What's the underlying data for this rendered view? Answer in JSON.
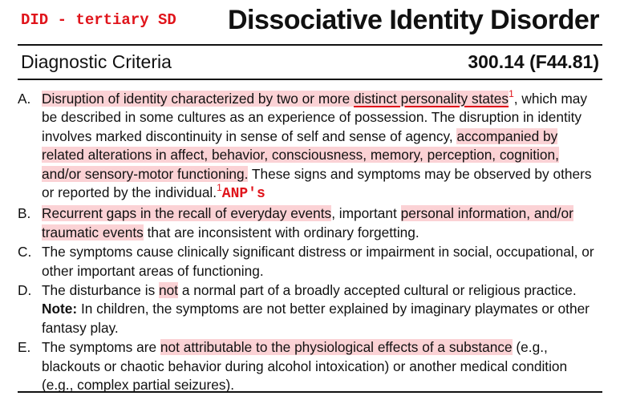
{
  "header": {
    "tag": "DID - tertiary SD",
    "title": "Dissociative Identity Disorder",
    "subtitle": "Diagnostic Criteria",
    "code": "300.14 (F44.81)"
  },
  "criteria": {
    "a": {
      "letter": "A.",
      "t1": "Disruption of identity characterized by two or more ",
      "t2": "distinct personality states",
      "fn1": "1",
      "t3": ", which may be described in some cultures as an experience of possession. The disruption in identity involves marked discontinuity in sense of self and sense of agency, ",
      "t4": "accompanied by related alterations in affect, behavior, consciousness, memory, perception, cognition, and/or sensory-motor functioning.",
      "t5": " These signs and symptoms may be observed by others or reported by the individual.",
      "fn2": "1",
      "anp": "ANP's"
    },
    "b": {
      "letter": "B.",
      "t1": "Recurrent gaps in the recall of everyday events",
      "t2": ", important ",
      "t3": "personal information, and/or traumatic events",
      "t4": " that are inconsistent with ordinary forgetting."
    },
    "c": {
      "letter": "C.",
      "t1": "The symptoms cause clinically significant distress or impairment in social, occupational, or other important areas of functioning."
    },
    "d": {
      "letter": "D.",
      "t1": "The disturbance is ",
      "t2": "not",
      "t3": " a normal part of a broadly accepted cultural or religious practice.",
      "note_label": "Note:",
      "note": " In children, the symptoms are not better explained by imaginary playmates or other fantasy play."
    },
    "e": {
      "letter": "E.",
      "t1": "The symptoms are ",
      "t2": "not attributable to the physiological effects of a substance",
      "t3": " (e.g., blackouts or chaotic behavior during alcohol intoxication) or another medical condition (e.g., complex partial seizures)."
    }
  },
  "colors": {
    "accent": "#e0141b",
    "highlight": "#fbd2d5"
  }
}
